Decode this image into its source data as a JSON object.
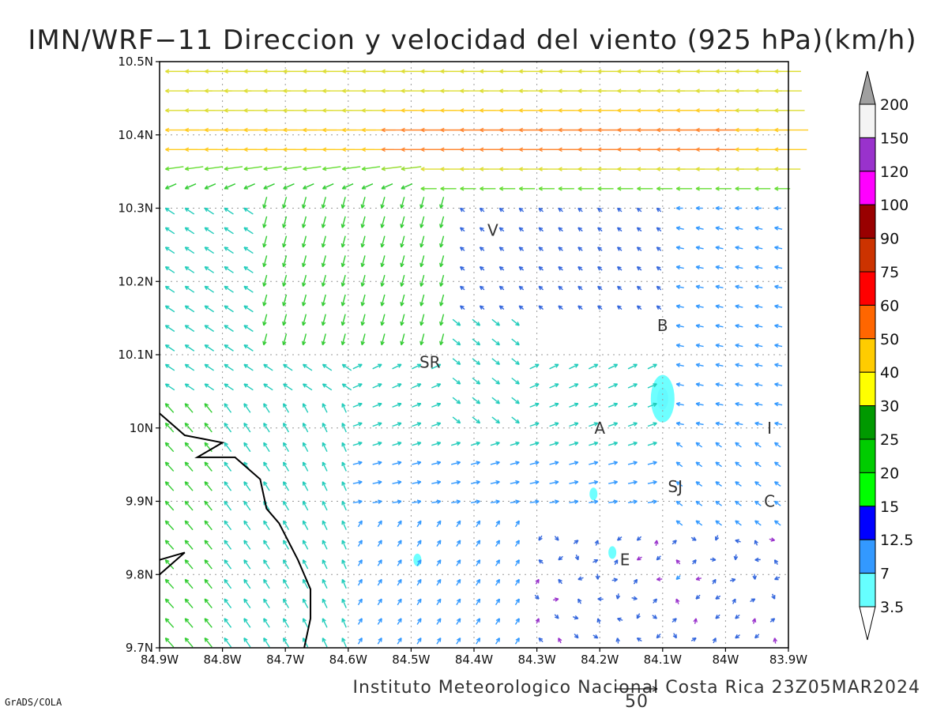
{
  "title": "IMN/WRF−11 Direccion y velocidad del viento (925 hPa)(km/h)",
  "footer": "Instituto Meteorologico Nacional Costa Rica 23Z05MAR2024",
  "credit": "GrADS/COLA",
  "reference_vector": {
    "label": "50",
    "speed_kmh": 50
  },
  "chart_data": {
    "type": "vector_field",
    "title": "IMN/WRF−11 Direccion y velocidad del viento (925 hPa)(km/h)",
    "x_ticks": [
      "84.9W",
      "84.8W",
      "84.7W",
      "84.6W",
      "84.5W",
      "84.4W",
      "84.3W",
      "84.2W",
      "84.1W",
      "84W",
      "83.9W"
    ],
    "y_ticks": [
      "10.5N",
      "10.4N",
      "10.3N",
      "10.2N",
      "10.1N",
      "10N",
      "9.9N",
      "9.8N",
      "9.7N"
    ],
    "lon_range": [
      -84.9,
      -83.9
    ],
    "lat_range": [
      9.7,
      10.5
    ],
    "grid": true,
    "colorbar": {
      "labels": [
        "200",
        "150",
        "120",
        "100",
        "90",
        "75",
        "60",
        "50",
        "40",
        "30",
        "25",
        "20",
        "15",
        "12.5",
        "7",
        "3.5"
      ],
      "colors": [
        "#a0a0a0",
        "#f4f4f4",
        "#9932cc",
        "#ff00ff",
        "#990000",
        "#cc3300",
        "#ff0000",
        "#ff6600",
        "#ffcc00",
        "#ffff00",
        "#009900",
        "#00cc00",
        "#00ff00",
        "#0000ff",
        "#3399ff",
        "#66ffff"
      ]
    },
    "cities": [
      {
        "label": "V",
        "lon": -84.37,
        "lat": 10.27
      },
      {
        "label": "SR",
        "lon": -84.47,
        "lat": 10.09
      },
      {
        "label": "B",
        "lon": -84.1,
        "lat": 10.14
      },
      {
        "label": "A",
        "lon": -84.2,
        "lat": 10.0
      },
      {
        "label": "I",
        "lon": -83.93,
        "lat": 10.0
      },
      {
        "label": "SJ",
        "lon": -84.08,
        "lat": 9.92
      },
      {
        "label": "C",
        "lon": -83.93,
        "lat": 9.9
      },
      {
        "label": "E",
        "lon": -84.16,
        "lat": 9.82
      }
    ],
    "coastline": [
      [
        -84.9,
        10.02
      ],
      [
        -84.86,
        9.99
      ],
      [
        -84.8,
        9.98
      ],
      [
        -84.84,
        9.96
      ],
      [
        -84.78,
        9.96
      ],
      [
        -84.74,
        9.93
      ],
      [
        -84.73,
        9.89
      ],
      [
        -84.71,
        9.87
      ],
      [
        -84.68,
        9.82
      ],
      [
        -84.66,
        9.78
      ],
      [
        -84.66,
        9.74
      ],
      [
        -84.67,
        9.7
      ]
    ],
    "coastline2": [
      [
        -84.9,
        9.82
      ],
      [
        -84.86,
        9.83
      ],
      [
        -84.9,
        9.8
      ]
    ],
    "calm_areas": [
      {
        "lon": -84.1,
        "lat": 10.04,
        "speed": "7"
      },
      {
        "lon": -84.1,
        "lat": 10.04,
        "speed": "3.5"
      },
      {
        "lon": -84.18,
        "lat": 9.83,
        "speed": "3.5"
      },
      {
        "lon": -84.49,
        "lat": 9.82,
        "speed": "3.5"
      },
      {
        "lon": -84.21,
        "lat": 9.91,
        "speed": "3.5"
      }
    ],
    "wind_regimes": [
      {
        "region": "north of 10.3N",
        "direction": "from E",
        "speed_kmh": [
          20,
          60
        ]
      },
      {
        "region": "west coast 84.9W-84.6W",
        "direction": "from S/SSW",
        "speed_kmh": [
          7,
          15
        ]
      },
      {
        "region": "central valley 84.4W-84.2W",
        "direction": "from W/SW",
        "speed_kmh": [
          7,
          15
        ]
      },
      {
        "region": "southeast 84.1W-83.9W south of 9.85N",
        "direction": "variable",
        "speed_kmh": [
          3.5,
          12.5
        ]
      }
    ]
  }
}
